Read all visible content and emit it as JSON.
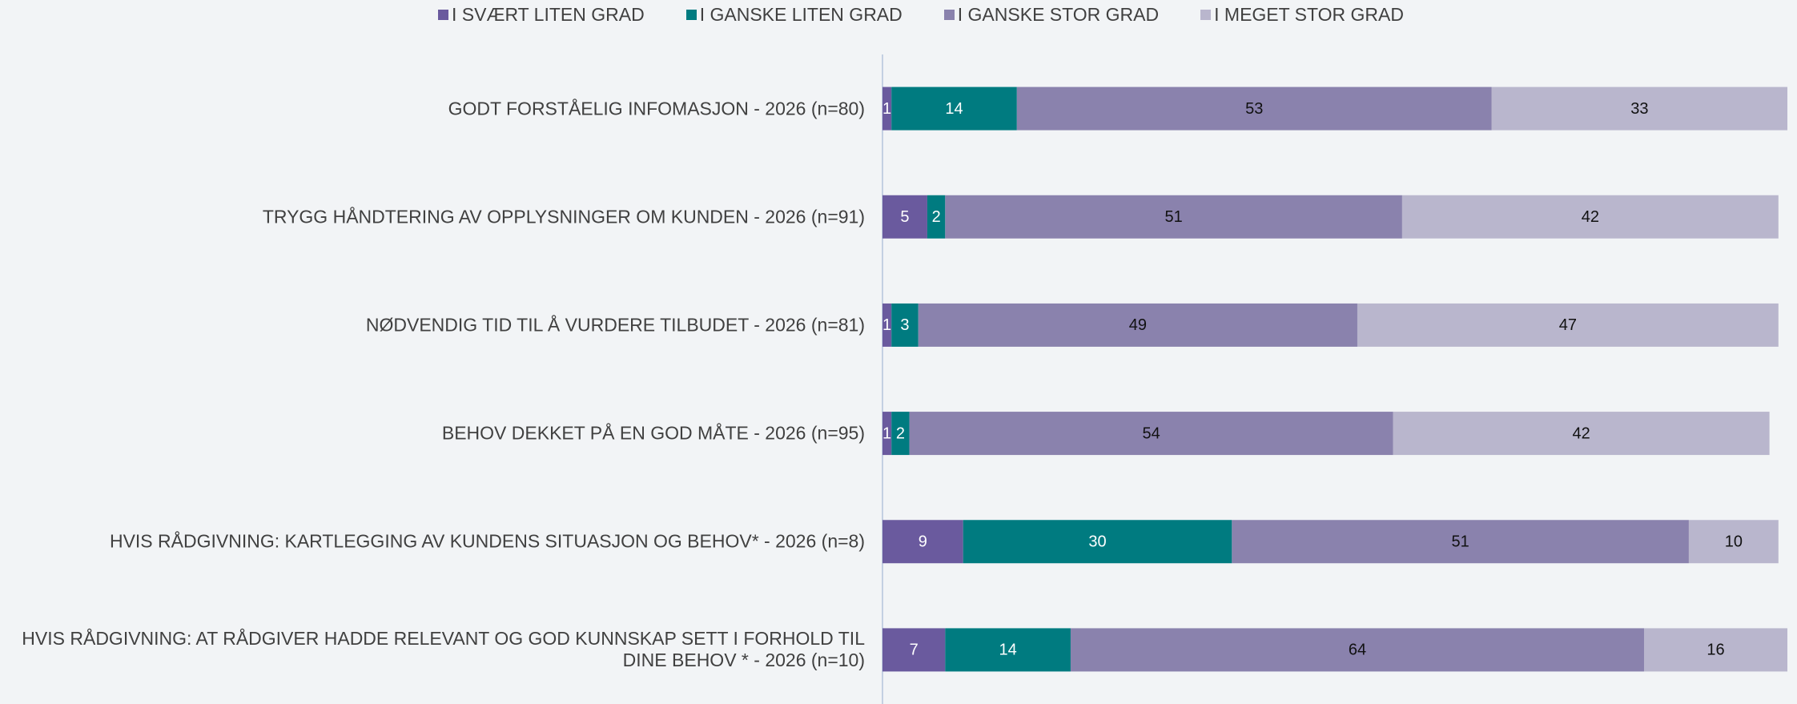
{
  "chart_data": {
    "type": "bar",
    "orientation": "horizontal",
    "stacked": true,
    "categories": [
      "GODT FORSTÅELIG INFOMASJON - 2026 (n=80)",
      "TRYGG HÅNDTERING AV OPPLYSNINGER OM KUNDEN - 2026 (n=91)",
      "NØDVENDIG TID TIL Å VURDERE TILBUDET - 2026 (n=81)",
      "BEHOV DEKKET PÅ EN GOD MÅTE - 2026 (n=95)",
      "HVIS RÅDGIVNING: KARTLEGGING AV KUNDENS SITUASJON OG BEHOV* - 2026 (n=8)",
      "HVIS RÅDGIVNING: AT RÅDGIVER HADDE RELEVANT OG GOD KUNNSKAP SETT I FORHOLD TIL DINE BEHOV * - 2026 (n=10)"
    ],
    "series": [
      {
        "name": "I SVÆRT LITEN GRAD",
        "color": "#6a5a9e",
        "label_color": "#ffffff",
        "values": [
          1,
          5,
          1,
          1,
          9,
          7
        ]
      },
      {
        "name": "I GANSKE LITEN GRAD",
        "color": "#007b80",
        "label_color": "#ffffff",
        "values": [
          14,
          2,
          3,
          2,
          30,
          14
        ]
      },
      {
        "name": "I GANSKE STOR GRAD",
        "color": "#8a82ad",
        "label_color": "#111111",
        "values": [
          53,
          51,
          49,
          54,
          51,
          64
        ]
      },
      {
        "name": "I MEGET STOR GRAD",
        "color": "#b9b6cd",
        "label_color": "#111111",
        "values": [
          33,
          42,
          47,
          42,
          10,
          16
        ]
      }
    ],
    "xlim": [
      0,
      101
    ],
    "legend": "top"
  }
}
